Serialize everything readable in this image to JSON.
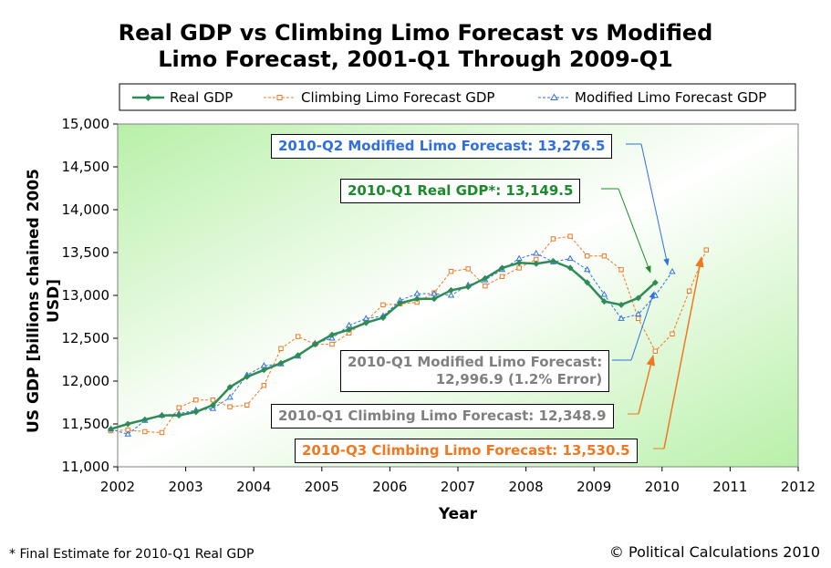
{
  "title_line1": "Real GDP vs Climbing Limo Forecast vs Modified",
  "title_line2": "Limo Forecast, 2001-Q1 Through 2009-Q1",
  "footnote": "* Final Estimate for 2010-Q1 Real GDP",
  "credit": "© Political Calculations 2010",
  "colors": {
    "real": "#2e8b57",
    "climbing": "#f07820",
    "modified": "#2f6fe0",
    "gray_text": "#808080",
    "plot_bg_light": "#ffffff",
    "plot_bg_green": "#b8f0a8"
  },
  "annotations": {
    "mod_q2": "2010-Q2 Modified Limo Forecast: 13,276.5",
    "real_q1": "2010-Q1 Real GDP*: 13,149.5",
    "mod_q1_line1": "2010-Q1 Modified Limo Forecast:",
    "mod_q1_line2": "12,996.9 (1.2% Error)",
    "climb_q1": "2010-Q1 Climbing Limo Forecast: 12,348.9",
    "climb_q3": "2010-Q3 Climbing Limo Forecast: 13,530.5"
  },
  "chart_data": {
    "type": "line",
    "title": "Real GDP vs Climbing Limo Forecast vs Modified Limo Forecast, 2001-Q1 Through 2009-Q1",
    "xlabel": "Year",
    "ylabel": "US GDP [billions chained 2005 USD]",
    "xlim": [
      2002,
      2012
    ],
    "ylim": [
      11000,
      15000
    ],
    "x_ticks": [
      2002,
      2003,
      2004,
      2005,
      2006,
      2007,
      2008,
      2009,
      2010,
      2011,
      2012
    ],
    "y_ticks": [
      11000,
      11500,
      12000,
      12500,
      13000,
      13500,
      14000,
      14500,
      15000
    ],
    "y_tick_labels": [
      "11,000",
      "11,500",
      "12,000",
      "12,500",
      "13,000",
      "13,500",
      "14,000",
      "14,500",
      "15,000"
    ],
    "legend_position": "top",
    "grid": false,
    "series": [
      {
        "name": "Real GDP",
        "x": [
          2001.9,
          2002.15,
          2002.4,
          2002.65,
          2002.9,
          2003.15,
          2003.4,
          2003.65,
          2003.9,
          2004.15,
          2004.4,
          2004.65,
          2004.9,
          2005.15,
          2005.4,
          2005.65,
          2005.9,
          2006.15,
          2006.4,
          2006.65,
          2006.9,
          2007.15,
          2007.4,
          2007.65,
          2007.9,
          2008.15,
          2008.4,
          2008.65,
          2008.9,
          2009.15,
          2009.4,
          2009.65,
          2009.9
        ],
        "y": [
          11440,
          11500,
          11550,
          11600,
          11600,
          11640,
          11720,
          11930,
          12050,
          12130,
          12210,
          12300,
          12430,
          12540,
          12600,
          12680,
          12740,
          12910,
          12960,
          12960,
          13060,
          13100,
          13200,
          13320,
          13380,
          13370,
          13400,
          13320,
          13150,
          12930,
          12890,
          12970,
          13149.5
        ]
      },
      {
        "name": "Climbing Limo Forecast GDP",
        "x": [
          2001.9,
          2002.15,
          2002.4,
          2002.65,
          2002.9,
          2003.15,
          2003.4,
          2003.65,
          2003.9,
          2004.15,
          2004.4,
          2004.65,
          2004.9,
          2005.15,
          2005.4,
          2005.65,
          2005.9,
          2006.15,
          2006.4,
          2006.65,
          2006.9,
          2007.15,
          2007.4,
          2007.65,
          2007.9,
          2008.15,
          2008.4,
          2008.65,
          2008.9,
          2009.15,
          2009.4,
          2009.65,
          2009.9,
          2010.15,
          2010.4,
          2010.65
        ],
        "y": [
          11420,
          11430,
          11410,
          11400,
          11690,
          11780,
          11780,
          11700,
          11720,
          11950,
          12380,
          12520,
          12430,
          12430,
          12560,
          12700,
          12890,
          12900,
          12920,
          13030,
          13280,
          13310,
          13110,
          13220,
          13320,
          13420,
          13660,
          13690,
          13460,
          13460,
          13300,
          12730,
          12348.9,
          12550,
          13050,
          13530.5
        ]
      },
      {
        "name": "Modified Limo Forecast GDP",
        "x": [
          2001.9,
          2002.15,
          2002.4,
          2002.65,
          2002.9,
          2003.15,
          2003.4,
          2003.65,
          2003.9,
          2004.15,
          2004.4,
          2004.65,
          2004.9,
          2005.15,
          2005.4,
          2005.65,
          2005.9,
          2006.15,
          2006.4,
          2006.65,
          2006.9,
          2007.15,
          2007.4,
          2007.65,
          2007.9,
          2008.15,
          2008.4,
          2008.65,
          2008.9,
          2009.15,
          2009.4,
          2009.65,
          2009.9,
          2010.15
        ],
        "y": [
          11440,
          11380,
          11540,
          11600,
          11620,
          11660,
          11680,
          11810,
          12070,
          12180,
          12200,
          12290,
          12440,
          12500,
          12650,
          12730,
          12760,
          12940,
          13020,
          13020,
          13000,
          13120,
          13180,
          13300,
          13430,
          13490,
          13390,
          13430,
          13300,
          13010,
          12730,
          12780,
          12996.9,
          13276.5
        ]
      }
    ]
  }
}
